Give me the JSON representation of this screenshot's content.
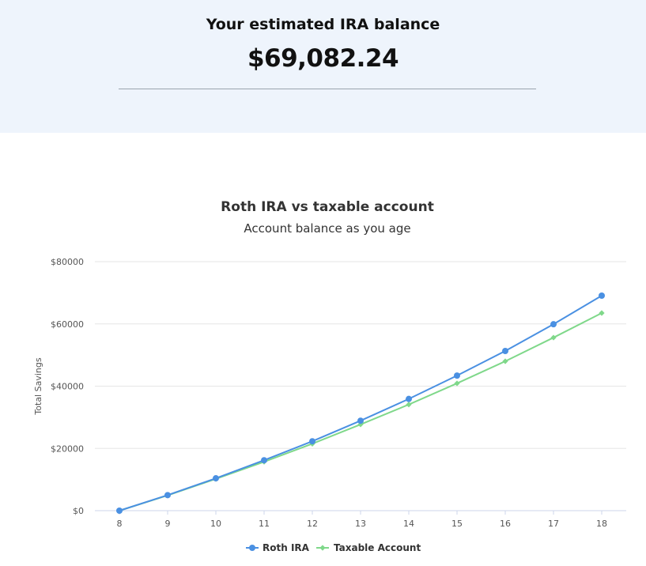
{
  "summary": {
    "label": "Your estimated IRA balance",
    "value": "$69,082.24"
  },
  "chart_data": {
    "type": "line",
    "title": "Roth IRA vs taxable account",
    "subtitle": "Account balance as you age",
    "xlabel": "",
    "ylabel": "Total Savings",
    "x": [
      8,
      9,
      10,
      11,
      12,
      13,
      14,
      15,
      16,
      17,
      18
    ],
    "ylim": [
      0,
      80000
    ],
    "yticks": [
      0,
      20000,
      40000,
      60000,
      80000
    ],
    "ytick_labels": [
      "$0",
      "$20000",
      "$40000",
      "$60000",
      "$80000"
    ],
    "grid": true,
    "legend": "bottom",
    "series": [
      {
        "name": "Roth IRA",
        "color": "#4a90e2",
        "marker": "circle",
        "values": [
          0,
          5000,
          10400,
          16200,
          22300,
          28900,
          35900,
          43400,
          51300,
          59900,
          69082.24
        ]
      },
      {
        "name": "Taxable Account",
        "color": "#7fd88a",
        "marker": "diamond",
        "values": [
          0,
          4900,
          10200,
          15700,
          21500,
          27700,
          34100,
          40900,
          48000,
          55600,
          63500
        ]
      }
    ]
  }
}
